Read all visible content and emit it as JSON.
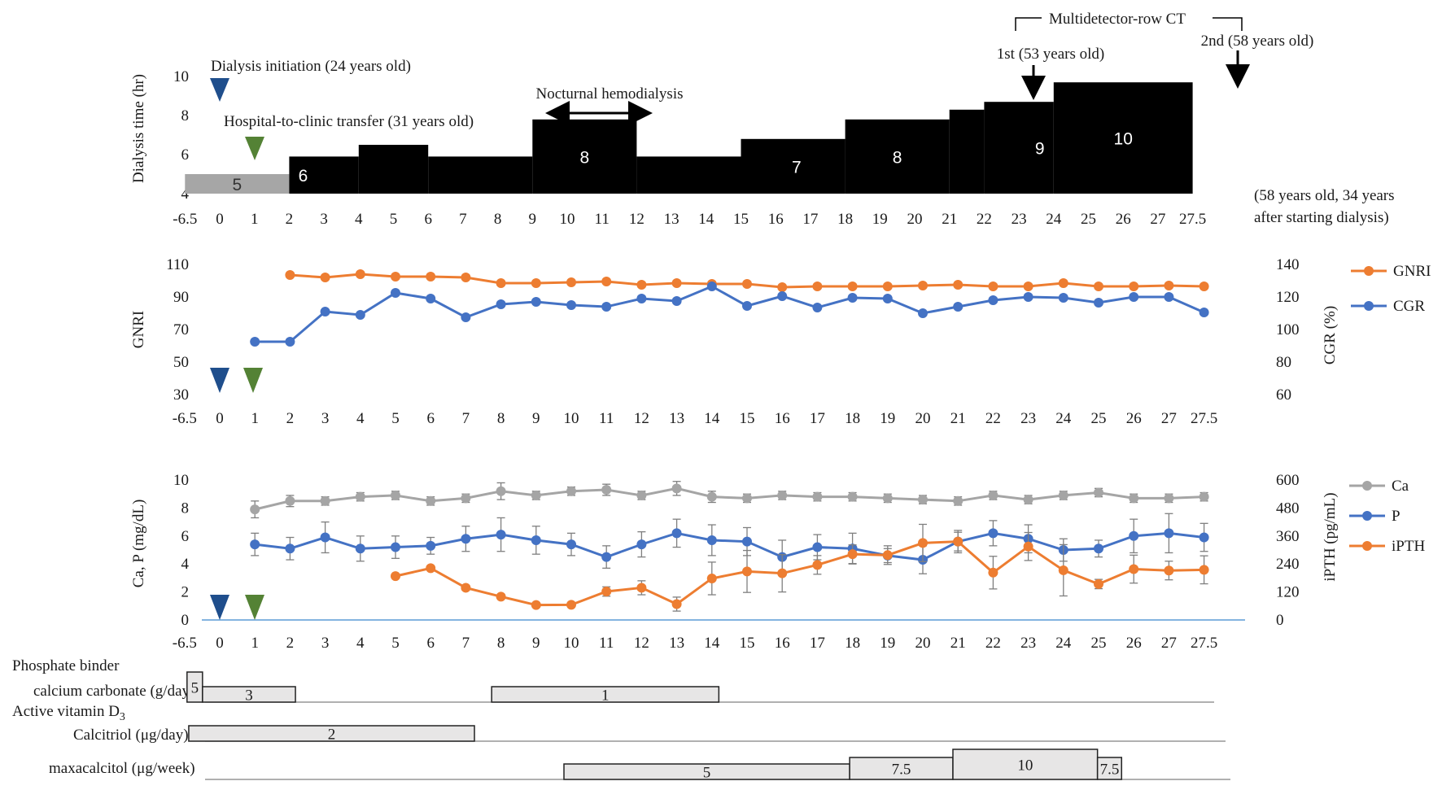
{
  "chart_data": [
    {
      "type": "step",
      "ylabel": "Dialysis time (hr)",
      "ylim": [
        4,
        10
      ],
      "yticks": [
        "4",
        "6",
        "8",
        "10"
      ],
      "xticks": [
        "-6.5",
        "0",
        "1",
        "2",
        "3",
        "4",
        "5",
        "6",
        "7",
        "8",
        "9",
        "10",
        "11",
        "12",
        "13",
        "14",
        "15",
        "16",
        "17",
        "18",
        "19",
        "20",
        "21",
        "22",
        "23",
        "24",
        "25",
        "26",
        "27",
        "27.5"
      ],
      "segments": [
        {
          "from": 0,
          "to": 3,
          "value": 5.0,
          "color": "#a6a6a6",
          "label": "5",
          "label_at": 1.5
        },
        {
          "from": 3,
          "to": 5,
          "value": 5.9,
          "color": "#000000",
          "label": "6",
          "label_at": 3.4
        },
        {
          "from": 5,
          "to": 7,
          "value": 6.5,
          "color": "#000000",
          "label": "",
          "label_at": null
        },
        {
          "from": 7,
          "to": 10,
          "value": 5.9,
          "color": "#000000",
          "label": "",
          "label_at": null
        },
        {
          "from": 10,
          "to": 13,
          "value": 7.8,
          "color": "#000000",
          "label": "8",
          "label_at": 11.5
        },
        {
          "from": 13,
          "to": 16,
          "value": 5.9,
          "color": "#000000",
          "label": "",
          "label_at": null
        },
        {
          "from": 16,
          "to": 19,
          "value": 6.8,
          "color": "#000000",
          "label": "7",
          "label_at": 17.6
        },
        {
          "from": 19,
          "to": 22,
          "value": 7.8,
          "color": "#000000",
          "label": "8",
          "label_at": 20.5
        },
        {
          "from": 22,
          "to": 23,
          "value": 8.3,
          "color": "#000000",
          "label": "",
          "label_at": null
        },
        {
          "from": 23,
          "to": 25,
          "value": 8.7,
          "color": "#000000",
          "label": "9",
          "label_at": 24.6
        },
        {
          "from": 25,
          "to": 29,
          "value": 9.7,
          "color": "#000000",
          "label": "10",
          "label_at": 27.0
        }
      ],
      "annotations": {
        "dialysis_initiation": "Dialysis initiation (24 years old)",
        "transfer": "Hospital-to-clinic transfer (31 years old)",
        "nocturnal": "Nocturnal hemodialysis",
        "mdct": "Multidetector-row CT",
        "first_ct": "1st (53 years old)",
        "second_ct": "2nd (58 years old)",
        "endnote_line1": "(58 years old, 34 years",
        "endnote_line2": "after starting dialysis)"
      }
    },
    {
      "type": "line",
      "ylabel": "GNRI",
      "y2label": "CGR (%)",
      "ylim": [
        30,
        110
      ],
      "y2lim": [
        60,
        140
      ],
      "yticks": [
        "30",
        "50",
        "70",
        "90",
        "110"
      ],
      "y2ticks": [
        "60",
        "80",
        "100",
        "120",
        "140"
      ],
      "xticks": [
        "-6.5",
        "0",
        "1",
        "2",
        "3",
        "4",
        "5",
        "6",
        "7",
        "8",
        "9",
        "10",
        "11",
        "12",
        "13",
        "14",
        "15",
        "16",
        "17",
        "18",
        "19",
        "20",
        "21",
        "22",
        "23",
        "24",
        "25",
        "26",
        "27",
        "27.5"
      ],
      "legend_position": "right",
      "series": [
        {
          "name": "GNRI",
          "axis": "left",
          "color": "#ed7d31",
          "x": [
            "2",
            "3",
            "4",
            "5",
            "6",
            "7",
            "8",
            "9",
            "10",
            "11",
            "12",
            "13",
            "14",
            "15",
            "16",
            "17",
            "18",
            "19",
            "20",
            "21",
            "22",
            "23",
            "24",
            "25",
            "26",
            "27",
            "27.5"
          ],
          "values": [
            103.5,
            102.0,
            104.0,
            102.5,
            102.5,
            102.0,
            98.5,
            98.5,
            99.0,
            99.5,
            97.5,
            98.5,
            98.0,
            98.0,
            96.0,
            96.5,
            96.5,
            96.5,
            97.0,
            97.5,
            96.5,
            96.5,
            98.5,
            96.5,
            96.5,
            97.0,
            96.5
          ]
        },
        {
          "name": "CGR",
          "axis": "right",
          "color": "#4472c4",
          "x": [
            "1",
            "2",
            "3",
            "4",
            "5",
            "6",
            "7",
            "8",
            "9",
            "10",
            "11",
            "12",
            "13",
            "14",
            "15",
            "16",
            "17",
            "18",
            "19",
            "20",
            "21",
            "22",
            "23",
            "24",
            "25",
            "26",
            "27",
            "27.5"
          ],
          "values": [
            92.5,
            92.5,
            111.0,
            109.0,
            122.5,
            119.0,
            107.5,
            115.5,
            117.0,
            115.0,
            114.0,
            119.0,
            117.5,
            126.5,
            114.5,
            120.5,
            113.5,
            119.5,
            119.0,
            110.0,
            114.0,
            118.0,
            120.0,
            119.5,
            116.5,
            120.0,
            120.0,
            110.5
          ]
        }
      ]
    },
    {
      "type": "line",
      "ylabel": "Ca, P (mg/dL)",
      "y2label": "iPTH (pg/mL)",
      "ylim": [
        0,
        10
      ],
      "y2lim": [
        0,
        600
      ],
      "yticks": [
        "0",
        "2",
        "4",
        "6",
        "8",
        "10"
      ],
      "y2ticks": [
        "0",
        "120",
        "240",
        "360",
        "480",
        "600"
      ],
      "xticks": [
        "-6.5",
        "0",
        "1",
        "2",
        "3",
        "4",
        "5",
        "6",
        "7",
        "8",
        "9",
        "10",
        "11",
        "12",
        "13",
        "14",
        "15",
        "16",
        "17",
        "18",
        "19",
        "20",
        "21",
        "22",
        "23",
        "24",
        "25",
        "26",
        "27",
        "27.5"
      ],
      "legend_position": "right",
      "series": [
        {
          "name": "Ca",
          "axis": "left",
          "color": "#a5a5a5",
          "x": [
            "1",
            "2",
            "3",
            "4",
            "5",
            "6",
            "7",
            "8",
            "9",
            "10",
            "11",
            "12",
            "13",
            "14",
            "15",
            "16",
            "17",
            "18",
            "19",
            "20",
            "21",
            "22",
            "23",
            "24",
            "25",
            "26",
            "27",
            "27.5"
          ],
          "values": [
            7.9,
            8.5,
            8.5,
            8.8,
            8.9,
            8.5,
            8.7,
            9.2,
            8.9,
            9.2,
            9.3,
            8.9,
            9.4,
            8.8,
            8.7,
            8.9,
            8.8,
            8.8,
            8.7,
            8.6,
            8.5,
            8.9,
            8.6,
            8.9,
            9.1,
            8.7,
            8.7,
            8.8
          ],
          "errors": [
            0.6,
            0.4,
            0.3,
            0.3,
            0.3,
            0.3,
            0.3,
            0.6,
            0.3,
            0.3,
            0.4,
            0.3,
            0.5,
            0.4,
            0.3,
            0.3,
            0.3,
            0.3,
            0.3,
            0.3,
            0.3,
            0.3,
            0.3,
            0.3,
            0.3,
            0.3,
            0.3,
            0.3
          ]
        },
        {
          "name": "P",
          "axis": "left",
          "color": "#4472c4",
          "x": [
            "1",
            "2",
            "3",
            "4",
            "5",
            "6",
            "7",
            "8",
            "9",
            "10",
            "11",
            "12",
            "13",
            "14",
            "15",
            "16",
            "17",
            "18",
            "19",
            "20",
            "21",
            "22",
            "23",
            "24",
            "25",
            "26",
            "27",
            "27.5"
          ],
          "values": [
            5.4,
            5.1,
            5.9,
            5.1,
            5.2,
            5.3,
            5.8,
            6.1,
            5.7,
            5.4,
            4.5,
            5.4,
            6.2,
            5.7,
            5.6,
            4.5,
            5.2,
            5.1,
            4.6,
            4.3,
            5.6,
            6.2,
            5.8,
            5.0,
            5.1,
            6.0,
            6.2,
            5.9
          ],
          "errors": [
            0.8,
            0.8,
            1.1,
            0.9,
            0.8,
            0.6,
            0.9,
            1.2,
            1.0,
            0.8,
            0.8,
            0.9,
            1.0,
            1.1,
            1.0,
            1.2,
            0.9,
            1.1,
            0.5,
            1.0,
            0.8,
            0.9,
            1.0,
            0.8,
            0.6,
            1.2,
            1.4,
            1.0
          ]
        },
        {
          "name": "iPTH",
          "axis": "right",
          "color": "#ed7d31",
          "x": [
            "5",
            "6",
            "7",
            "8",
            "9",
            "10",
            "11",
            "12",
            "13",
            "14",
            "15",
            "16",
            "17",
            "18",
            "19",
            "20",
            "21",
            "22",
            "23",
            "24",
            "25",
            "26",
            "27",
            "27.5"
          ],
          "values": [
            188,
            222,
            138,
            100,
            64,
            65,
            122,
            138,
            68,
            178,
            208,
            200,
            236,
            282,
            278,
            330,
            336,
            203,
            315,
            213,
            154,
            218,
            212,
            215
          ],
          "errors": [
            0,
            0,
            0,
            0,
            0,
            0,
            20,
            30,
            30,
            70,
            90,
            80,
            40,
            40,
            40,
            80,
            40,
            70,
            60,
            110,
            20,
            60,
            40,
            60
          ]
        }
      ]
    },
    {
      "type": "gantt",
      "xticks": [
        "-6.5",
        "0",
        "1",
        "2",
        "3",
        "4",
        "5",
        "6",
        "7",
        "8",
        "9",
        "10",
        "11",
        "12",
        "13",
        "14",
        "15",
        "16",
        "17",
        "18",
        "19",
        "20",
        "21",
        "22",
        "23",
        "24",
        "25",
        "26",
        "27",
        "27.5"
      ],
      "groups": [
        {
          "heading": "Phosphate binder",
          "rows": [
            {
              "label": "calcium carbonate (g/day)",
              "bars": [
                {
                  "from": 0.05,
                  "to": 0.5,
                  "value": "5",
                  "level": "high"
                },
                {
                  "from": 0.5,
                  "to": 3.2,
                  "value": "3",
                  "level": "low"
                },
                {
                  "from": 8.9,
                  "to": 15.5,
                  "value": "1",
                  "level": "low"
                }
              ]
            }
          ]
        },
        {
          "heading": "Active vitamin D3",
          "heading_main": "Active vitamin D",
          "heading_sub": "3",
          "rows": [
            {
              "label": "Calcitriol (μg/day)",
              "bars": [
                {
                  "from": 0.1,
                  "to": 8.4,
                  "value": "2",
                  "level": "low"
                }
              ]
            }
          ]
        },
        {
          "heading": "",
          "rows": [
            {
              "label": "maxacalcitol (μg/week)",
              "bars": [
                {
                  "from": 11.0,
                  "to": 19.3,
                  "value": "5",
                  "level": "low"
                },
                {
                  "from": 19.3,
                  "to": 22.3,
                  "value": "7.5",
                  "level": "mid"
                },
                {
                  "from": 22.3,
                  "to": 26.5,
                  "value": "10",
                  "level": "high"
                },
                {
                  "from": 26.5,
                  "to": 27.2,
                  "value": "7.5",
                  "level": "mid"
                }
              ]
            }
          ]
        }
      ]
    }
  ],
  "colors": {
    "dialysis_marker": "#1f4e8c",
    "transfer_marker": "#548235",
    "bar_fill": "#e7e6e6",
    "zero_line": "#5b9bd5"
  }
}
